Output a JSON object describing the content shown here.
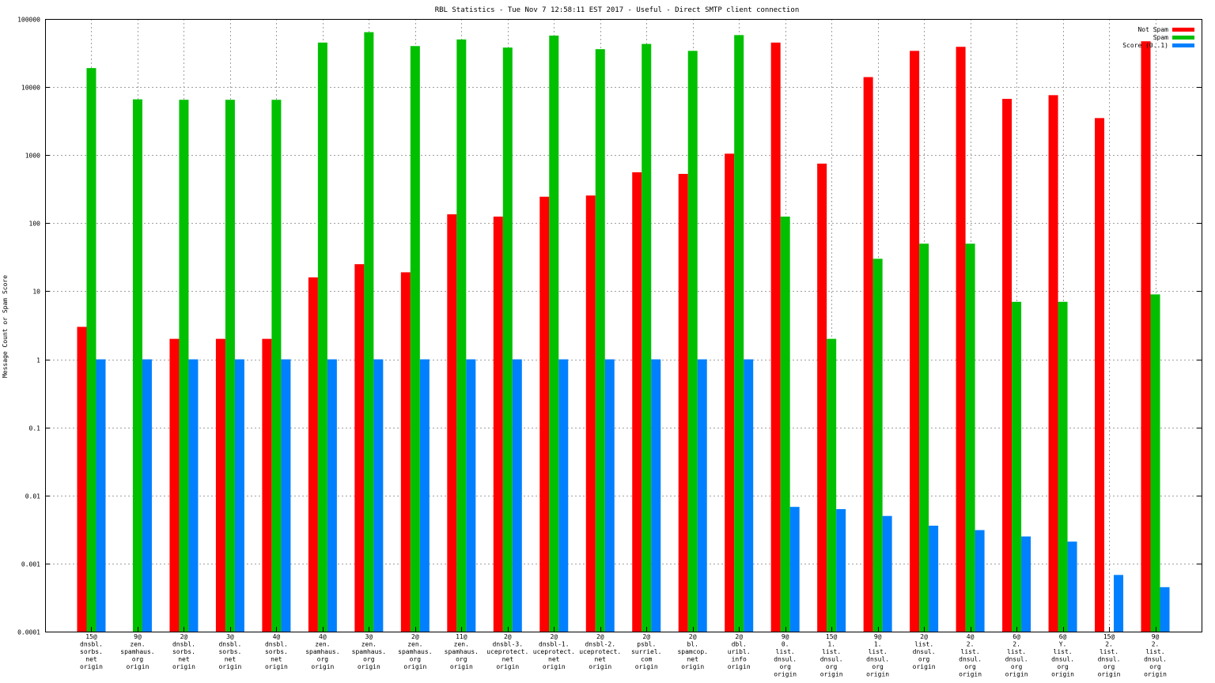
{
  "chart_data": {
    "type": "bar",
    "title": "RBL Statistics - Tue Nov  7 12:58:11 EST 2017 - Useful - Direct SMTP client connection",
    "xlabel": "",
    "ylabel": "Message Count or Spam Score",
    "yscale": "log",
    "ylim": [
      0.0001,
      100000
    ],
    "grid": true,
    "legend_position": "top-right",
    "yticks": [
      "0.0001",
      "0.001",
      "0.01",
      "0.1",
      "1",
      "10",
      "100",
      "1000",
      "10000",
      "100000"
    ],
    "categories": [
      [
        "15@",
        "dnsbl.",
        "sorbs.",
        "net",
        "origin"
      ],
      [
        "9@",
        "zen.",
        "spamhaus.",
        "org",
        "origin"
      ],
      [
        "2@",
        "dnsbl.",
        "sorbs.",
        "net",
        "origin"
      ],
      [
        "3@",
        "dnsbl.",
        "sorbs.",
        "net",
        "origin"
      ],
      [
        "4@",
        "dnsbl.",
        "sorbs.",
        "net",
        "origin"
      ],
      [
        "4@",
        "zen.",
        "spamhaus.",
        "org",
        "origin"
      ],
      [
        "3@",
        "zen.",
        "spamhaus.",
        "org",
        "origin"
      ],
      [
        "2@",
        "zen.",
        "spamhaus.",
        "org",
        "origin"
      ],
      [
        "11@",
        "zen.",
        "spamhaus.",
        "org",
        "origin"
      ],
      [
        "2@",
        "dnsbl-3.",
        "uceprotect.",
        "net",
        "origin"
      ],
      [
        "2@",
        "dnsbl-1.",
        "uceprotect.",
        "net",
        "origin"
      ],
      [
        "2@",
        "dnsbl-2.",
        "uceprotect.",
        "net",
        "origin"
      ],
      [
        "2@",
        "psbl.",
        "surriel.",
        "com",
        "origin"
      ],
      [
        "2@",
        "bl.",
        "spamcop.",
        "net",
        "origin"
      ],
      [
        "2@",
        "dbl.",
        "uribl.",
        "info",
        "origin"
      ],
      [
        "9@",
        "0.",
        "list.",
        "dnsul.",
        "org",
        "origin"
      ],
      [
        "15@",
        "1.",
        "list.",
        "dnsul.",
        "org",
        "origin"
      ],
      [
        "9@",
        "1.",
        "list.",
        "dnsul.",
        "org",
        "origin"
      ],
      [
        "2@",
        "list.",
        "dnsul.",
        "org",
        "origin"
      ],
      [
        "4@",
        "2.",
        "list.",
        "dnsul.",
        "org",
        "origin"
      ],
      [
        "6@",
        "2.",
        "list.",
        "dnsul.",
        "org",
        "origin"
      ],
      [
        "6@",
        "Y.",
        "list.",
        "dnsul.",
        "org",
        "origin"
      ],
      [
        "15@",
        "2.",
        "list.",
        "dnsul.",
        "org",
        "origin"
      ],
      [
        "9@",
        "2.",
        "list.",
        "dnsul.",
        "org",
        "origin"
      ]
    ],
    "series": [
      {
        "name": "Not Spam",
        "color": "#ff0000",
        "values": [
          3,
          null,
          2,
          2,
          2,
          16,
          25,
          19,
          135,
          125,
          245,
          255,
          560,
          530,
          1050,
          45000,
          750,
          14000,
          34000,
          39000,
          6700,
          7600,
          3500,
          47000
        ]
      },
      {
        "name": "Spam",
        "color": "#00c000",
        "values": [
          19000,
          6600,
          6500,
          6500,
          6500,
          45000,
          64000,
          40000,
          50000,
          38000,
          57000,
          36000,
          43000,
          34000,
          58000,
          125,
          2,
          30,
          50,
          50,
          7,
          7,
          null,
          9
        ]
      },
      {
        "name": "Score (0..1)",
        "color": "#0080ff",
        "values": [
          1,
          1,
          1,
          1,
          1,
          1,
          1,
          1,
          1,
          1,
          1,
          1,
          1,
          1,
          1,
          0.0068,
          0.0063,
          0.005,
          0.0036,
          0.0031,
          0.0025,
          0.0021,
          0.00068,
          0.00045
        ]
      }
    ]
  }
}
